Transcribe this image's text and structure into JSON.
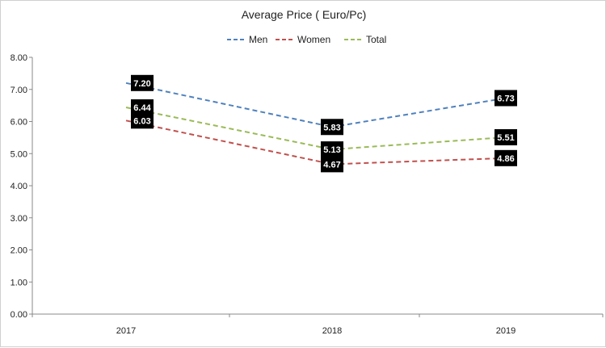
{
  "chart_data": {
    "type": "line",
    "title": "Average Price ( Euro/Pc)",
    "xlabel": "",
    "ylabel": "",
    "categories": [
      "2017",
      "2018",
      "2019"
    ],
    "ylim": [
      0,
      8
    ],
    "yticks": [
      "0.00",
      "1.00",
      "2.00",
      "3.00",
      "4.00",
      "5.00",
      "6.00",
      "7.00",
      "8.00"
    ],
    "legend_position": "top-center",
    "grid": false,
    "series": [
      {
        "name": "Men",
        "color": "#4f81bd",
        "values": [
          7.2,
          5.83,
          6.73
        ],
        "labels": [
          "7.20",
          "5.83",
          "6.73"
        ]
      },
      {
        "name": "Women",
        "color": "#c0504d",
        "values": [
          6.03,
          4.67,
          4.86
        ],
        "labels": [
          "6.03",
          "4.67",
          "4.86"
        ]
      },
      {
        "name": "Total",
        "color": "#9bbb59",
        "values": [
          6.44,
          5.13,
          5.51
        ],
        "labels": [
          "6.44",
          "5.13",
          "5.51"
        ]
      }
    ]
  }
}
